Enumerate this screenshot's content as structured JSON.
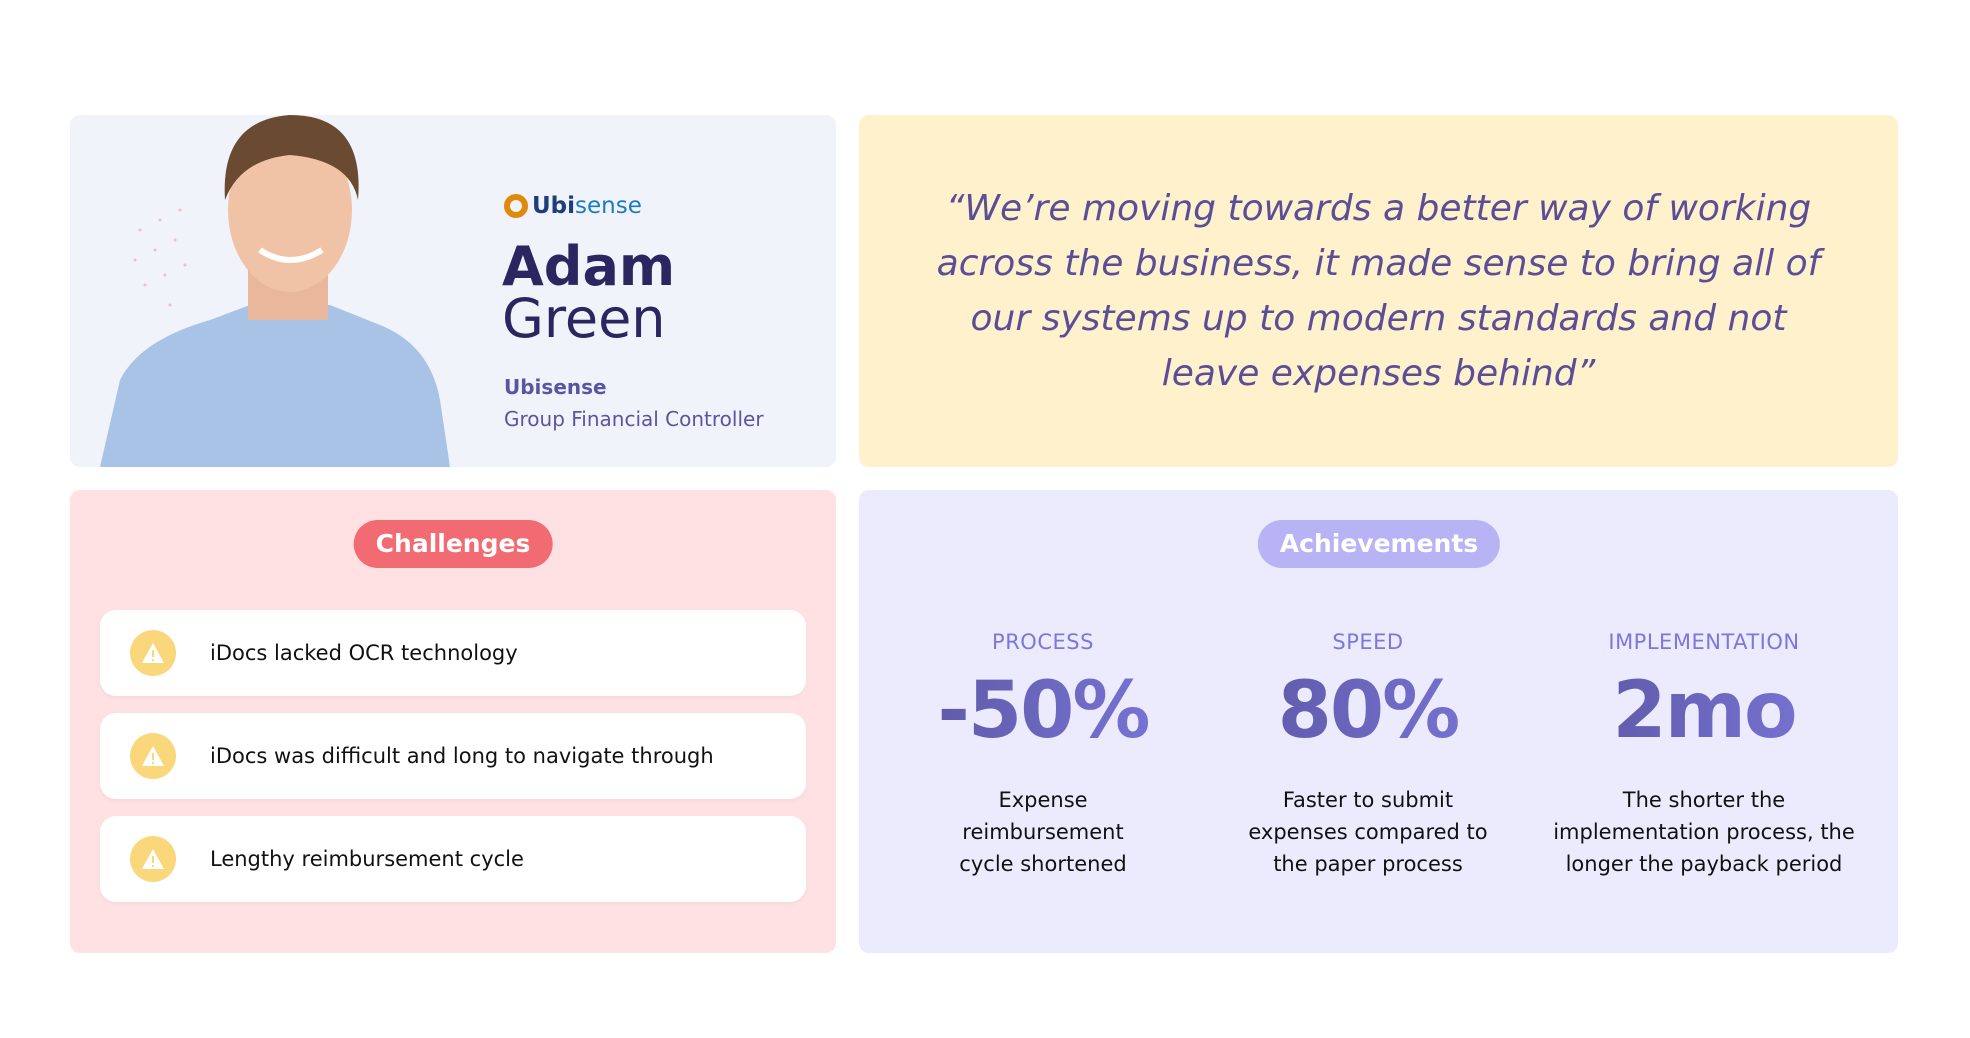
{
  "profile": {
    "company_logo": "Ubisense",
    "logo_text_bold": "Ubi",
    "logo_text_light": "sense",
    "first_name": "Adam",
    "last_name": "Green",
    "company": "Ubisense",
    "role": "Group Financial Controller"
  },
  "quote": {
    "text": "“We’re moving towards a better way of working across the business, it made sense to bring all of our systems up to modern standards and not leave expenses behind”"
  },
  "challenges": {
    "title": "Challenges",
    "accent": "#f36b72",
    "items": [
      {
        "icon": "warning-icon",
        "text": "iDocs lacked OCR technology"
      },
      {
        "icon": "warning-icon",
        "text": "iDocs was difficult and long to navigate through"
      },
      {
        "icon": "warning-icon",
        "text": "Lengthy reimbursement cycle"
      }
    ]
  },
  "achievements": {
    "title": "Achievements",
    "accent": "#b7b3f4",
    "stats": [
      {
        "label": "PROCESS",
        "value": "-50%",
        "desc": "Expense reimbursement cycle shortened"
      },
      {
        "label": "SPEED",
        "value": "80%",
        "desc": "Faster to submit expenses compared to the paper process"
      },
      {
        "label": "IMPLEMENTATION",
        "value": "2mo",
        "desc": "The shorter the implementation process, the longer the payback period"
      }
    ]
  }
}
